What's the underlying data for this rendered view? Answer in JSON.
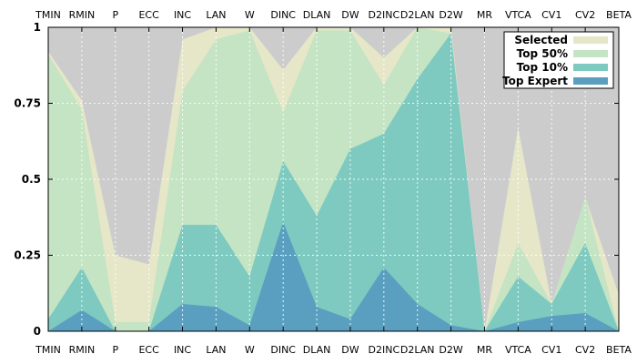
{
  "chart_data": {
    "type": "area",
    "categories": [
      "TMIN",
      "RMIN",
      "P",
      "ECC",
      "INC",
      "LAN",
      "W",
      "DINC",
      "DLAN",
      "DW",
      "D2INC",
      "D2LAN",
      "D2W",
      "MR",
      "VTCA",
      "CV1",
      "CV2",
      "BETA"
    ],
    "ylim": [
      0,
      1
    ],
    "yticks": [
      0,
      0.25,
      0.5,
      0.75,
      1
    ],
    "ytick_labels": [
      "0",
      "0.25",
      "0.5",
      "0.75",
      "1"
    ],
    "grid": true,
    "background": "#cccccc",
    "legend_position": "top-right",
    "series": [
      {
        "name": "Selected",
        "color": "#e6e6c8",
        "values": [
          0.92,
          0.76,
          0.25,
          0.22,
          0.96,
          1.0,
          1.0,
          0.86,
          1.0,
          1.0,
          0.9,
          1.0,
          1.0,
          0.0,
          0.67,
          0.09,
          0.44,
          0.12
        ]
      },
      {
        "name": "Top 50%",
        "color": "#c4e4c4",
        "values": [
          0.91,
          0.73,
          0.03,
          0.03,
          0.79,
          0.96,
          0.99,
          0.72,
          0.99,
          0.99,
          0.81,
          1.0,
          0.98,
          0.0,
          0.29,
          0.09,
          0.44,
          0.0
        ]
      },
      {
        "name": "Top 10%",
        "color": "#7ecac0",
        "values": [
          0.04,
          0.21,
          0.0,
          0.0,
          0.35,
          0.35,
          0.18,
          0.56,
          0.38,
          0.6,
          0.65,
          0.83,
          0.98,
          0.0,
          0.18,
          0.09,
          0.29,
          0.0
        ]
      },
      {
        "name": "Top Expert",
        "color": "#5a9fbf",
        "values": [
          0.0,
          0.07,
          0.0,
          0.0,
          0.09,
          0.08,
          0.02,
          0.36,
          0.08,
          0.04,
          0.21,
          0.09,
          0.02,
          0.0,
          0.03,
          0.05,
          0.06,
          0.0
        ]
      }
    ]
  }
}
